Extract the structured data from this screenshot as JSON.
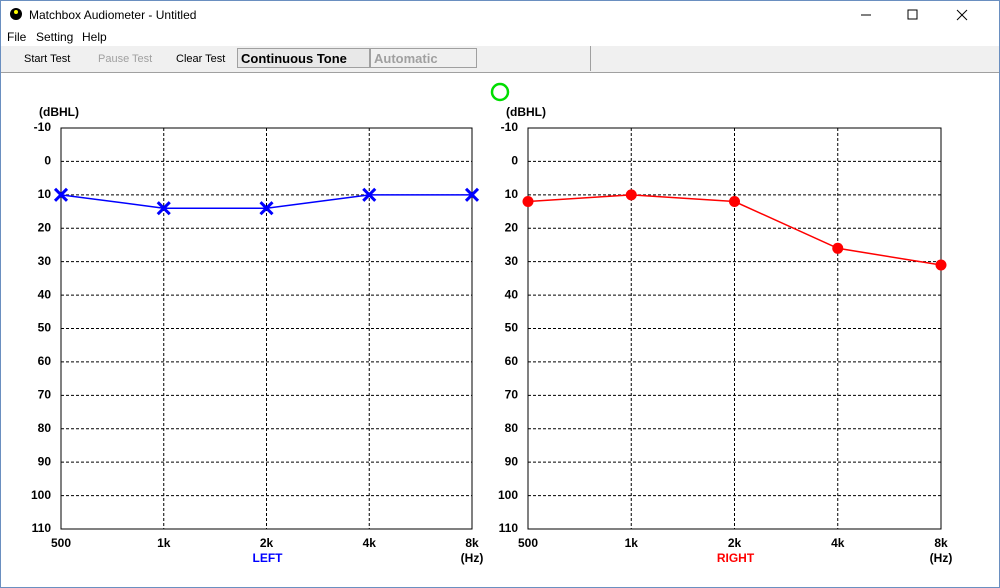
{
  "window": {
    "title": "Matchbox Audiometer - Untitled"
  },
  "menu": [
    "File",
    "Setting",
    "Help"
  ],
  "toolbar": {
    "start": "Start Test",
    "pause": "Pause Test",
    "clear": "Clear Test",
    "tone": "Continuous Tone",
    "mode": "Automatic"
  },
  "chart_data": [
    {
      "type": "line",
      "xlabel": "LEFT",
      "ylabel": "(dBHL)",
      "xunit": "(Hz)",
      "categories": [
        "500",
        "1k",
        "2k",
        "4k",
        "8k"
      ],
      "series": [
        {
          "color": "#0000ff",
          "marker": "x",
          "values": [
            10,
            14,
            14,
            10,
            10
          ]
        }
      ],
      "ylim": [
        110,
        -10
      ],
      "yticks": [
        -10,
        0,
        10,
        20,
        30,
        40,
        50,
        60,
        70,
        80,
        90,
        100,
        110
      ],
      "grid": true
    },
    {
      "type": "line",
      "xlabel": "RIGHT",
      "ylabel": "(dBHL)",
      "xunit": "(Hz)",
      "categories": [
        "500",
        "1k",
        "2k",
        "4k",
        "8k"
      ],
      "series": [
        {
          "color": "#ff0000",
          "marker": "circle",
          "values": [
            12,
            10,
            12,
            26,
            31
          ]
        }
      ],
      "ylim": [
        110,
        -10
      ],
      "yticks": [
        -10,
        0,
        10,
        20,
        30,
        40,
        50,
        60,
        70,
        80,
        90,
        100,
        110
      ],
      "grid": true
    }
  ]
}
